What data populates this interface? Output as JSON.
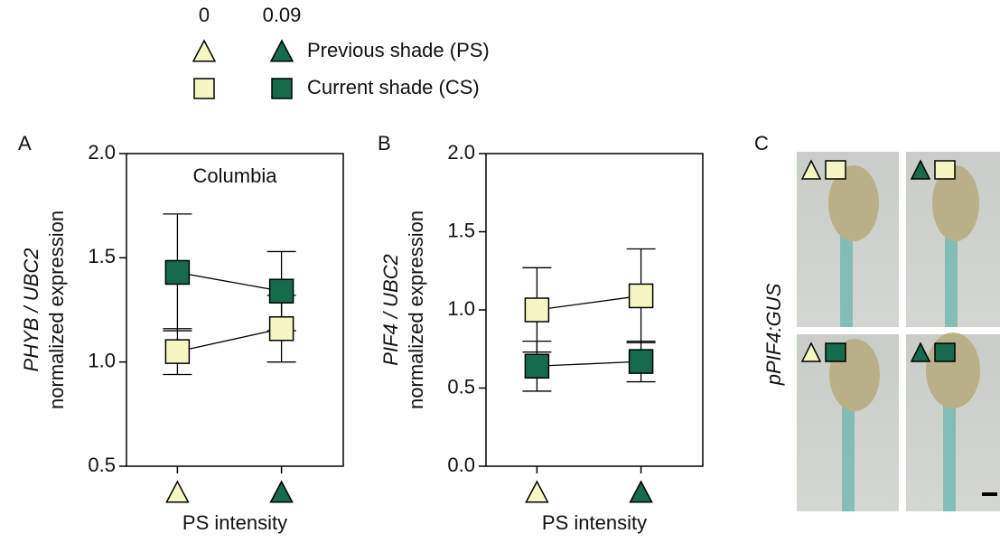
{
  "legend": {
    "columns": [
      "0",
      "0.09"
    ],
    "rows": [
      "Previous shade (PS)",
      "Current shade (CS)"
    ],
    "colors": [
      "#f6f6c2",
      "#176b4d"
    ]
  },
  "panels": [
    "A",
    "B",
    "C"
  ],
  "panel_c": {
    "ylabel": "pPIF4:GUS"
  },
  "chart_data": [
    {
      "type": "line",
      "annotation": "Columbia",
      "xlabel": "PS intensity",
      "ylabel": {
        "gene": "PHYB / UBC2",
        "text": "normalized expression"
      },
      "categories": [
        null,
        null
      ],
      "category_colors": [
        "#f6f6c2",
        "#176b4d"
      ],
      "ylim": [
        0.5,
        2.0
      ],
      "yticks": [
        0.5,
        {
          "value": 1.0,
          "label": "1.0"
        },
        1.5,
        {
          "value": 2.0,
          "label": "2.0"
        }
      ],
      "series": [
        {
          "color": "#f6f6c2",
          "values": [
            1.05,
            1.16
          ],
          "errors": [
            0.11,
            0.16
          ]
        },
        {
          "color": "#176b4d",
          "values": [
            1.43,
            1.34
          ],
          "errors": [
            0.28,
            0.19
          ]
        }
      ]
    },
    {
      "type": "line",
      "xlabel": "PS intensity",
      "ylabel": {
        "gene": "PIF4 / UBC2",
        "text": "normalized expression"
      },
      "categories": [
        null,
        null
      ],
      "category_colors": [
        "#f6f6c2",
        "#176b4d"
      ],
      "ylim": [
        0.0,
        2.0
      ],
      "yticks": [
        {
          "value": 0.0,
          "label": "0.0"
        },
        0.5,
        {
          "value": 1.0,
          "label": "1.0"
        },
        1.5,
        {
          "value": 2.0,
          "label": "2.0"
        }
      ],
      "series": [
        {
          "color": "#f6f6c2",
          "values": [
            1.0,
            1.09
          ],
          "errors": [
            0.27,
            0.3
          ]
        },
        {
          "color": "#176b4d",
          "values": [
            0.64,
            0.67
          ],
          "errors": [
            0.16,
            0.13
          ]
        }
      ]
    }
  ]
}
